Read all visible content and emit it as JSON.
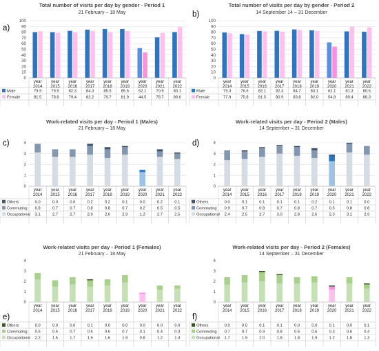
{
  "chart_data": [
    {
      "panel_label": "a)",
      "type": "bar",
      "title": "Total number of visits per day by gender - Period 1",
      "subtitle": "21 February – 18 May",
      "categories": [
        "year 2014",
        "year 2015",
        "year 2016",
        "year 2017",
        "year 2018",
        "year 2019",
        "year 2020",
        "year 2021",
        "year 2022"
      ],
      "ylim": [
        0,
        100
      ],
      "yticks": [
        0,
        10,
        20,
        30,
        40,
        50,
        60,
        70,
        80,
        90,
        100
      ],
      "stacked": false,
      "grid": true,
      "series": [
        {
          "name": "Male",
          "color": "#2e74c0",
          "values": [
            79.9,
            79.9,
            82.3,
            84.3,
            85.5,
            85.6,
            52.1,
            70.9,
            80.1
          ],
          "color_override": {
            "6": "#5b8fe0"
          }
        },
        {
          "name": "Female",
          "color": "#ffc0f0",
          "values": [
            81.5,
            78.8,
            79.4,
            82.2,
            79.7,
            81.9,
            44.5,
            78.7,
            89.0
          ],
          "color_override": {
            "6": "#ff8fe0"
          }
        }
      ]
    },
    {
      "panel_label": "b)",
      "type": "bar",
      "title": "Total number of visits per day by gender - Period 2",
      "subtitle": "14 September 14 – 31 December",
      "categories": [
        "year 2014",
        "year 2015",
        "year 2016",
        "year 2017",
        "year 2018",
        "year 2019",
        "year 2020",
        "year 2021",
        "year 2022"
      ],
      "ylim": [
        0,
        100
      ],
      "yticks": [
        0,
        10,
        20,
        30,
        40,
        50,
        60,
        70,
        80,
        90,
        100
      ],
      "stacked": false,
      "grid": true,
      "series": [
        {
          "name": "Male",
          "color": "#2e74c0",
          "values": [
            79.3,
            76.6,
            82.1,
            82.3,
            84.7,
            83.1,
            62.1,
            81.3,
            80.6
          ],
          "color_override": {
            "6": "#5b8fe0"
          }
        },
        {
          "name": "Female",
          "color": "#ffc0f0",
          "values": [
            77.9,
            75.8,
            81.5,
            80.9,
            83.8,
            82.0,
            54.8,
            89.4,
            88.3
          ],
          "color_override": {
            "6": "#ff8fe0"
          }
        }
      ]
    },
    {
      "panel_label": "c)",
      "type": "bar",
      "title": "Work-related visits per day - Period 1 (Males)",
      "subtitle": "21 February – 18 May",
      "categories": [
        "year 2014",
        "year 2015",
        "year 2016",
        "year 2017",
        "year 2018",
        "year 2019",
        "year 2020",
        "year 2021",
        "year 2022"
      ],
      "ylim": [
        0,
        4
      ],
      "yticks": [
        0,
        1,
        2,
        3,
        4
      ],
      "stacked": true,
      "grid": true,
      "series": [
        {
          "name": "Others",
          "color": "#44546a",
          "values": [
            0.0,
            0.0,
            0.0,
            0.2,
            0.2,
            0.1,
            0.0,
            0.2,
            0.1
          ]
        },
        {
          "name": "Commuting",
          "color": "#8497b0",
          "values": [
            0.8,
            0.7,
            0.7,
            0.8,
            0.8,
            0.7,
            0.2,
            0.5,
            0.5
          ],
          "color_override": {
            "6": "#2e74c0"
          }
        },
        {
          "name": "Occupational",
          "color": "#d6dce4",
          "values": [
            3.1,
            2.7,
            2.7,
            2.9,
            2.6,
            2.9,
            1.3,
            2.7,
            2.5
          ],
          "color_override": {
            "6": "#9dc3e6"
          }
        }
      ]
    },
    {
      "panel_label": "d)",
      "type": "bar",
      "title": "Work-related visits per day - Period 2 (Males)",
      "subtitle": "14 September – 31 December",
      "categories": [
        "year 2014",
        "year 2015",
        "year 2016",
        "year 2017",
        "year 2018",
        "year 2019",
        "year 2020",
        "year 2021",
        "year 2022"
      ],
      "ylim": [
        0,
        4
      ],
      "yticks": [
        0,
        1,
        2,
        3,
        4
      ],
      "stacked": true,
      "grid": true,
      "series": [
        {
          "name": "Others",
          "color": "#44546a",
          "values": [
            0.0,
            0.1,
            0.1,
            0.1,
            0.1,
            0.2,
            0.1,
            0.1,
            0.0
          ],
          "color_override": {
            "6": "#1f4e79"
          }
        },
        {
          "name": "Commuting",
          "color": "#8497b0",
          "values": [
            0.9,
            0.7,
            0.8,
            0.7,
            0.8,
            0.7,
            0.5,
            0.8,
            0.8
          ],
          "color_override": {
            "6": "#2e74c0"
          }
        },
        {
          "name": "Occupational",
          "color": "#d6dce4",
          "values": [
            2.4,
            2.5,
            2.7,
            3.0,
            2.8,
            2.6,
            2.3,
            3.1,
            2.9
          ],
          "color_override": {
            "6": "#9dc3e6"
          }
        }
      ]
    },
    {
      "panel_label": "e)",
      "type": "bar",
      "title": "Work-related visits per day - Period 1 (Females)",
      "subtitle": "21 February – 18 May",
      "categories": [
        "year 2014",
        "year 2015",
        "year 2016",
        "year 2017",
        "year 2018",
        "year 2019",
        "year 2020",
        "year 2021",
        "year 2022"
      ],
      "ylim": [
        0,
        4
      ],
      "yticks": [
        0,
        1,
        2,
        3,
        4
      ],
      "stacked": true,
      "grid": false,
      "series": [
        {
          "name": "Others",
          "color": "#375623",
          "values": [
            0.0,
            0.0,
            0.0,
            0.1,
            0.0,
            0.0,
            0.0,
            0.0,
            0.0
          ]
        },
        {
          "name": "Commuting",
          "color": "#a9d18e",
          "values": [
            0.6,
            0.6,
            0.7,
            0.6,
            0.6,
            0.7,
            0.1,
            0.4,
            0.3
          ],
          "color_override": {
            "6": "#ff8fe0"
          }
        },
        {
          "name": "Occupational",
          "color": "#c5e0b4",
          "values": [
            2.2,
            1.5,
            1.7,
            1.5,
            1.6,
            1.9,
            0.8,
            1.2,
            1.3
          ],
          "color_override": {
            "6": "#ffc0f0"
          }
        }
      ]
    },
    {
      "panel_label": "f)",
      "type": "bar",
      "title": "Work-related visits per day - Period 2 (Females)",
      "subtitle": "14 September – 31 December",
      "categories": [
        "year 2014",
        "year 2015",
        "year 2016",
        "year 2017",
        "year 2018",
        "year 2019",
        "year 2020",
        "year 2021",
        "year 2022"
      ],
      "ylim": [
        0,
        4
      ],
      "yticks": [
        0,
        1,
        2,
        3,
        4
      ],
      "stacked": true,
      "grid": false,
      "series": [
        {
          "name": "Others",
          "color": "#375623",
          "values": [
            0.0,
            0.0,
            0.1,
            0.1,
            0.0,
            0.0,
            0.1,
            0.0,
            0.1
          ]
        },
        {
          "name": "Commuting",
          "color": "#a9d18e",
          "values": [
            0.7,
            0.7,
            0.9,
            0.8,
            0.6,
            0.6,
            0.3,
            0.6,
            0.4
          ],
          "color_override": {
            "6": "#ff8fe0"
          }
        },
        {
          "name": "Occupational",
          "color": "#c5e0b4",
          "values": [
            1.7,
            1.9,
            2.0,
            1.8,
            1.8,
            1.9,
            1.2,
            1.8,
            1.3
          ],
          "color_override": {
            "6": "#ffc0f0"
          }
        }
      ]
    }
  ]
}
